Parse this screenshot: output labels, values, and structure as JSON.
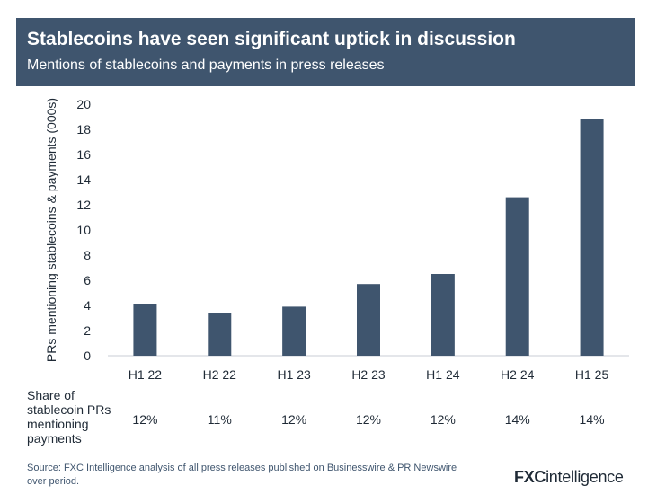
{
  "header": {
    "title": "Stablecoins have seen significant uptick in discussion",
    "subtitle": "Mentions of stablecoins and payments in press releases"
  },
  "chart_data": {
    "type": "bar",
    "categories": [
      "H1 22",
      "H2 22",
      "H1 23",
      "H2 23",
      "H1 24",
      "H2 24",
      "H1 25"
    ],
    "values": [
      4.1,
      3.4,
      3.9,
      5.7,
      6.5,
      12.6,
      18.8
    ],
    "ylabel": "PRs mentioning stablecoins & payments (000s)",
    "ylim": [
      0,
      20
    ],
    "yticks": [
      0,
      2,
      4,
      6,
      8,
      10,
      12,
      14,
      16,
      18,
      20
    ],
    "grid": false,
    "bar_color": "#3f556e"
  },
  "share_row": {
    "label": "Share of stablecoin PRs mentioning payments",
    "values": [
      "12%",
      "11%",
      "12%",
      "12%",
      "12%",
      "14%",
      "14%"
    ]
  },
  "footer": {
    "source": "Source: FXC Intelligence analysis of all press releases published on Businesswire & PR Newswire over period.",
    "logo_bold": "FXC",
    "logo_rest": "intelligence"
  },
  "colors": {
    "header_bg": "#3f556e",
    "text": "#1f2a36"
  }
}
